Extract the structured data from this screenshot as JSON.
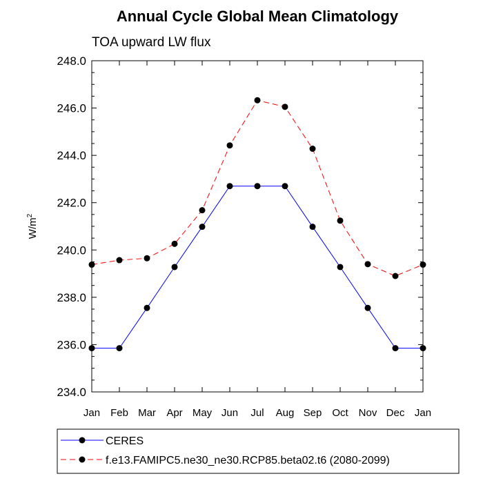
{
  "chart_data": {
    "type": "line",
    "title": "Annual Cycle Global Mean Climatology",
    "subtitle": "TOA upward LW flux",
    "xlabel": "",
    "ylabel": "W/m",
    "ylabel_superscript": "2",
    "categories": [
      "Jan",
      "Feb",
      "Mar",
      "Apr",
      "May",
      "Jun",
      "Jul",
      "Aug",
      "Sep",
      "Oct",
      "Nov",
      "Dec",
      "Jan"
    ],
    "ylim": [
      234.0,
      248.0
    ],
    "yticks": [
      "234.0",
      "236.0",
      "238.0",
      "240.0",
      "242.0",
      "244.0",
      "246.0",
      "248.0"
    ],
    "grid": false,
    "legend_position": "bottom",
    "series": [
      {
        "name": "CERES",
        "color": "#0000ff",
        "dash": "solid",
        "values": [
          235.85,
          235.85,
          237.55,
          239.28,
          240.98,
          242.7,
          242.7,
          242.7,
          240.98,
          239.28,
          237.55,
          235.85,
          235.85
        ]
      },
      {
        "name": "f.e13.FAMIPC5.ne30_ne30.RCP85.beta02.t6 (2080-2099)",
        "color": "#ff0000",
        "dash": "dashed",
        "values": [
          239.38,
          239.57,
          239.65,
          240.26,
          241.68,
          244.42,
          246.33,
          246.05,
          244.28,
          241.24,
          239.4,
          238.9,
          239.38
        ]
      }
    ]
  }
}
